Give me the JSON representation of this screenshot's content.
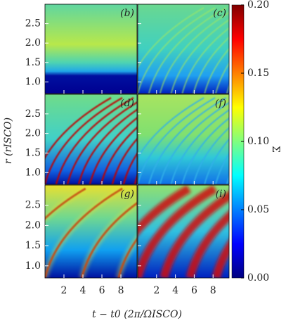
{
  "chart_data": {
    "type": "heatmap",
    "panels": [
      {
        "label": "(b)"
      },
      {
        "label": "(c)"
      },
      {
        "label": "(d)"
      },
      {
        "label": "(f)"
      },
      {
        "label": "(g)"
      },
      {
        "label": "(i)"
      }
    ],
    "xlabel": "t − t0 (2π/ΩISCO)",
    "ylabel": "r (rISCO)",
    "xlim": [
      0,
      9.7
    ],
    "xticks": [
      2,
      4,
      6,
      8
    ],
    "ylim": [
      0.7,
      3.0
    ],
    "yticks": [
      {
        "value": 1.0,
        "label": "1.0"
      },
      {
        "value": 1.5,
        "label": "1.5"
      },
      {
        "value": 2.0,
        "label": "2.0"
      },
      {
        "value": 2.5,
        "label": "2.5"
      }
    ],
    "colorbar": {
      "label": "Σ",
      "lim": [
        0,
        0.2
      ],
      "ticks": [
        {
          "value": 0,
          "label": "0.00"
        },
        {
          "value": 0.05,
          "label": "0.05"
        },
        {
          "value": 0.1,
          "label": "0.10"
        },
        {
          "value": 0.15,
          "label": "0.15"
        },
        {
          "value": 0.2,
          "label": "0.20"
        }
      ]
    }
  }
}
